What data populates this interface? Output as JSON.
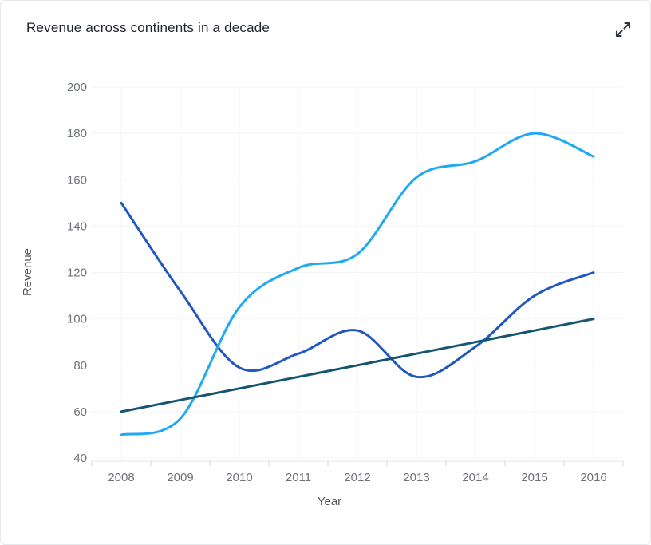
{
  "header": {
    "title": "Revenue across continents in a decade",
    "expand_icon": "expand-arrows-icon"
  },
  "chart_data": {
    "type": "line",
    "title": "Revenue across continents in a decade",
    "xlabel": "Year",
    "ylabel": "Revenue",
    "categories": [
      "2008",
      "2009",
      "2010",
      "2011",
      "2012",
      "2013",
      "2014",
      "2015",
      "2016"
    ],
    "y_ticks": [
      40,
      60,
      80,
      100,
      120,
      140,
      160,
      180,
      200
    ],
    "ylim": [
      40,
      200
    ],
    "grid": true,
    "legend_position": "none",
    "curve": "smooth",
    "series": [
      {
        "name": "royal-blue",
        "color": "#2158C0",
        "values": [
          150,
          112,
          79,
          85,
          95,
          75,
          88,
          110,
          120
        ]
      },
      {
        "name": "light-blue",
        "color": "#20A9F0",
        "values": [
          50,
          57,
          105,
          122,
          128,
          161,
          168,
          180,
          170
        ]
      },
      {
        "name": "dark-teal",
        "color": "#155571",
        "values": [
          60,
          65,
          70,
          75,
          80,
          85,
          90,
          95,
          100
        ]
      }
    ],
    "colors": {
      "grid": "#f3f4f6",
      "axis_line": "#e3e4e8",
      "tick": "#d6d7db",
      "tick_label": "#6d7178",
      "axis_title": "#4f545c",
      "title": "#20252f"
    }
  }
}
